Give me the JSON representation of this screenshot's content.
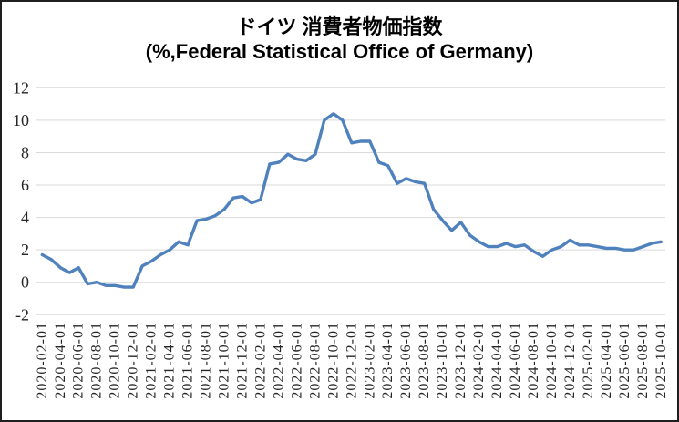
{
  "title": {
    "line1": "ドイツ 消費者物価指数",
    "line2": "(%,Federal Statistical Office of Germany)"
  },
  "chart_data": {
    "type": "line",
    "title": "ドイツ 消費者物価指数 (%,Federal Statistical Office of Germany)",
    "xlabel": "",
    "ylabel": "",
    "ylim": [
      -2,
      12
    ],
    "y_ticks": [
      -2,
      0,
      2,
      4,
      6,
      8,
      10,
      12
    ],
    "x_tick_every": 2,
    "grid": true,
    "legend": "none",
    "line_color": "#4f81bd",
    "gridline_color": "#d9d9d9",
    "tick_text_color": "#262626",
    "x": [
      "2020-02-01",
      "2020-03-01",
      "2020-04-01",
      "2020-05-01",
      "2020-06-01",
      "2020-07-01",
      "2020-08-01",
      "2020-09-01",
      "2020-10-01",
      "2020-11-01",
      "2020-12-01",
      "2021-01-01",
      "2021-02-01",
      "2021-03-01",
      "2021-04-01",
      "2021-05-01",
      "2021-06-01",
      "2021-07-01",
      "2021-08-01",
      "2021-09-01",
      "2021-10-01",
      "2021-11-01",
      "2021-12-01",
      "2022-01-01",
      "2022-02-01",
      "2022-03-01",
      "2022-04-01",
      "2022-05-01",
      "2022-06-01",
      "2022-07-01",
      "2022-08-01",
      "2022-09-01",
      "2022-10-01",
      "2022-11-01",
      "2022-12-01",
      "2023-01-01",
      "2023-02-01",
      "2023-03-01",
      "2023-04-01",
      "2023-05-01",
      "2023-06-01",
      "2023-07-01",
      "2023-08-01",
      "2023-09-01",
      "2023-10-01",
      "2023-11-01",
      "2023-12-01",
      "2024-01-01",
      "2024-02-01",
      "2024-03-01",
      "2024-04-01",
      "2024-05-01",
      "2024-06-01",
      "2024-07-01",
      "2024-08-01",
      "2024-09-01",
      "2024-10-01",
      "2024-11-01",
      "2024-12-01",
      "2025-01-01",
      "2025-02-01",
      "2025-03-01",
      "2025-04-01",
      "2025-05-01",
      "2025-06-01",
      "2025-07-01",
      "2025-08-01",
      "2025-09-01",
      "2025-10-01"
    ],
    "values": [
      1.7,
      1.4,
      0.9,
      0.6,
      0.9,
      -0.1,
      0.0,
      -0.2,
      -0.2,
      -0.3,
      -0.3,
      1.0,
      1.3,
      1.7,
      2.0,
      2.5,
      2.3,
      3.8,
      3.9,
      4.1,
      4.5,
      5.2,
      5.3,
      4.9,
      5.1,
      7.3,
      7.4,
      7.9,
      7.6,
      7.5,
      7.9,
      10.0,
      10.4,
      10.0,
      8.6,
      8.7,
      8.7,
      7.4,
      7.2,
      6.1,
      6.4,
      6.2,
      6.1,
      4.5,
      3.8,
      3.2,
      3.7,
      2.9,
      2.5,
      2.2,
      2.2,
      2.4,
      2.2,
      2.3,
      1.9,
      1.6,
      2.0,
      2.2,
      2.6,
      2.3,
      2.3,
      2.2,
      2.1,
      2.1,
      2.0,
      2.0,
      2.2,
      2.4,
      2.5
    ]
  }
}
